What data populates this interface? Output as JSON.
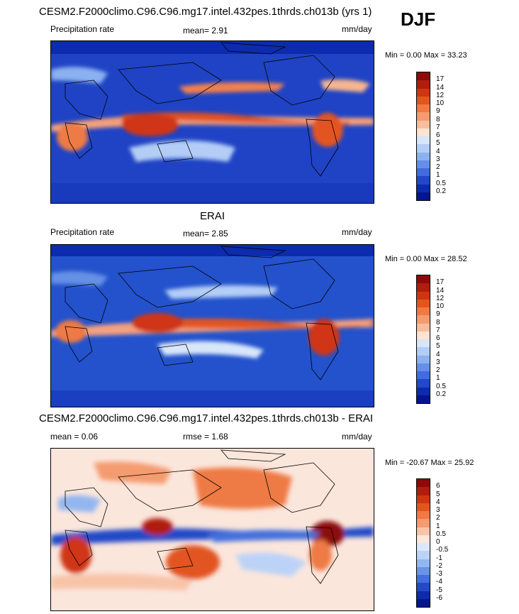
{
  "season": "DJF",
  "panels": [
    {
      "title": "CESM2.F2000climo.C96.C96.mg17.intel.432pes.1thrds.ch013b (yrs 1)",
      "left_label": "Precipitation rate",
      "center_label": "mean=   2.91",
      "right_label": "mm/day",
      "minmax": "Min =   0.00 Max =  33.23",
      "levels": [
        "17",
        "14",
        "12",
        "10",
        "9",
        "8",
        "7",
        "6",
        "5",
        "4",
        "3",
        "2",
        "1",
        "0.5",
        "0.2"
      ],
      "colors": [
        "#8b0a0a",
        "#b01d0d",
        "#cf3512",
        "#e25520",
        "#ee7a45",
        "#f49b70",
        "#f8bd9c",
        "#fde3d0",
        "#d8e6fa",
        "#b3cdf6",
        "#8cb1f0",
        "#6590e6",
        "#3f6ddb",
        "#2048c8",
        "#0c2bad",
        "#05168a"
      ]
    },
    {
      "title": "ERAI",
      "left_label": "Precipitation rate",
      "center_label": "mean=   2.85",
      "right_label": "mm/day",
      "minmax": "Min =   0.00 Max =  28.52",
      "levels": [
        "17",
        "14",
        "12",
        "10",
        "9",
        "8",
        "7",
        "6",
        "5",
        "4",
        "3",
        "2",
        "1",
        "0.5",
        "0.2"
      ],
      "colors": [
        "#8b0a0a",
        "#b01d0d",
        "#cf3512",
        "#e25520",
        "#ee7a45",
        "#f49b70",
        "#f8bd9c",
        "#fde3d0",
        "#d8e6fa",
        "#b3cdf6",
        "#8cb1f0",
        "#6590e6",
        "#3f6ddb",
        "#2048c8",
        "#0c2bad",
        "#05168a"
      ]
    },
    {
      "title": "CESM2.F2000climo.C96.C96.mg17.intel.432pes.1thrds.ch013b - ERAI",
      "left_label": "mean =   0.06",
      "center_label": "rmse =   1.68",
      "right_label": "mm/day",
      "minmax": "Min = -20.67 Max =  25.92",
      "levels": [
        "6",
        "5",
        "4",
        "3",
        "2",
        "1",
        "0.5",
        "0",
        "-0.5",
        "-1",
        "-2",
        "-3",
        "-4",
        "-5",
        "-6"
      ],
      "colors": [
        "#8b0a0a",
        "#b01d0d",
        "#cf3512",
        "#e25520",
        "#ee7a45",
        "#f49b70",
        "#f8c4a8",
        "#fde6da",
        "#dbe8fb",
        "#bcd3f7",
        "#94b6f0",
        "#6b93e6",
        "#4470db",
        "#2149c8",
        "#0d2bad",
        "#05168a"
      ]
    }
  ]
}
